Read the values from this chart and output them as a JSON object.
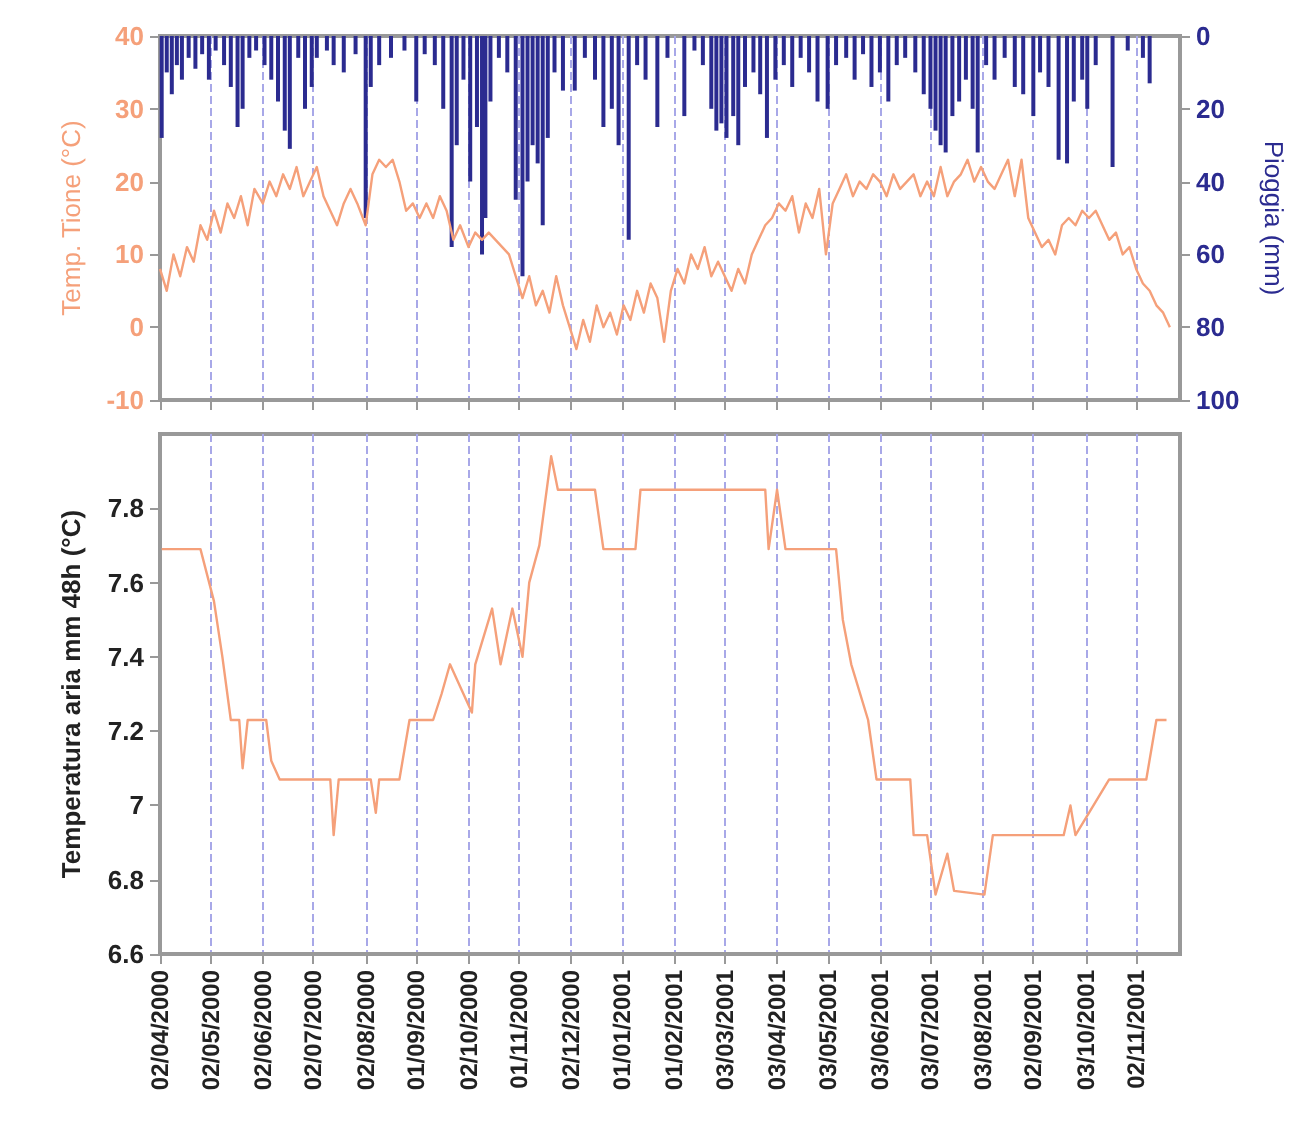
{
  "chart_data": [
    {
      "type": "line",
      "ylabel": "Temp. Tione (°C)",
      "y2label": "Pioggia (mm)",
      "xlim": [
        "2000-04-02",
        "2001-11-28"
      ],
      "xticks": [
        {
          "value": "2000-04-02",
          "label": null
        },
        {
          "value": "2000-05-02",
          "label": null
        },
        {
          "value": "2000-06-02",
          "label": null
        },
        {
          "value": "2000-07-02",
          "label": null
        },
        {
          "value": "2000-08-02",
          "label": null
        },
        {
          "value": "2000-09-01",
          "label": null
        },
        {
          "value": "2000-10-02",
          "label": null
        },
        {
          "value": "2000-11-01",
          "label": null
        },
        {
          "value": "2000-12-02",
          "label": null
        },
        {
          "value": "2001-01-01",
          "label": null
        },
        {
          "value": "2001-02-01",
          "label": null
        },
        {
          "value": "2001-03-03",
          "label": null
        },
        {
          "value": "2001-04-03",
          "label": null
        },
        {
          "value": "2001-05-03",
          "label": null
        },
        {
          "value": "2001-06-03",
          "label": null
        },
        {
          "value": "2001-07-03",
          "label": null
        },
        {
          "value": "2001-08-03",
          "label": null
        },
        {
          "value": "2001-09-02",
          "label": null
        },
        {
          "value": "2001-10-03",
          "label": null
        },
        {
          "value": "2001-11-02",
          "label": null
        }
      ],
      "ylim": [
        -10,
        40
      ],
      "yticks": [
        -10,
        0,
        10,
        20,
        30,
        40
      ],
      "y2lim": [
        100,
        0
      ],
      "y2ticks": [
        0,
        20,
        40,
        60,
        80,
        100
      ],
      "grid": "x",
      "tick_labels": "y",
      "series": [
        {
          "color": "#f5a07a",
          "x": [
            "2000-04-02",
            "2000-04-06",
            "2000-04-10",
            "2000-04-14",
            "2000-04-18",
            "2000-04-22",
            "2000-04-26",
            "2000-04-30",
            "2000-05-04",
            "2000-05-08",
            "2000-05-12",
            "2000-05-16",
            "2000-05-20",
            "2000-05-24",
            "2000-05-28",
            "2000-06-02",
            "2000-06-06",
            "2000-06-10",
            "2000-06-14",
            "2000-06-18",
            "2000-06-22",
            "2000-06-26",
            "2000-06-30",
            "2000-07-04",
            "2000-07-08",
            "2000-07-12",
            "2000-07-16",
            "2000-07-20",
            "2000-07-24",
            "2000-07-28",
            "2000-08-02",
            "2000-08-06",
            "2000-08-10",
            "2000-08-14",
            "2000-08-18",
            "2000-08-22",
            "2000-08-26",
            "2000-08-30",
            "2000-09-03",
            "2000-09-07",
            "2000-09-11",
            "2000-09-15",
            "2000-09-19",
            "2000-09-23",
            "2000-09-27",
            "2000-10-02",
            "2000-10-06",
            "2000-10-10",
            "2000-10-14",
            "2000-10-18",
            "2000-10-22",
            "2000-10-26",
            "2000-10-30",
            "2000-11-03",
            "2000-11-07",
            "2000-11-11",
            "2000-11-15",
            "2000-11-19",
            "2000-11-23",
            "2000-11-27",
            "2000-12-01",
            "2000-12-05",
            "2000-12-09",
            "2000-12-13",
            "2000-12-17",
            "2000-12-21",
            "2000-12-25",
            "2000-12-29",
            "2001-01-02",
            "2001-01-06",
            "2001-01-10",
            "2001-01-14",
            "2001-01-18",
            "2001-01-22",
            "2001-01-26",
            "2001-01-30",
            "2001-02-03",
            "2001-02-07",
            "2001-02-11",
            "2001-02-15",
            "2001-02-19",
            "2001-02-23",
            "2001-02-27",
            "2001-03-03",
            "2001-03-07",
            "2001-03-11",
            "2001-03-15",
            "2001-03-19",
            "2001-03-23",
            "2001-03-27",
            "2001-03-31",
            "2001-04-04",
            "2001-04-08",
            "2001-04-12",
            "2001-04-16",
            "2001-04-20",
            "2001-04-24",
            "2001-04-28",
            "2001-05-02",
            "2001-05-06",
            "2001-05-10",
            "2001-05-14",
            "2001-05-18",
            "2001-05-22",
            "2001-05-26",
            "2001-05-30",
            "2001-06-03",
            "2001-06-07",
            "2001-06-11",
            "2001-06-15",
            "2001-06-19",
            "2001-06-23",
            "2001-06-27",
            "2001-07-01",
            "2001-07-05",
            "2001-07-09",
            "2001-07-13",
            "2001-07-17",
            "2001-07-21",
            "2001-07-25",
            "2001-07-29",
            "2001-08-02",
            "2001-08-06",
            "2001-08-10",
            "2001-08-14",
            "2001-08-18",
            "2001-08-22",
            "2001-08-26",
            "2001-08-30",
            "2001-09-03",
            "2001-09-07",
            "2001-09-11",
            "2001-09-15",
            "2001-09-19",
            "2001-09-23",
            "2001-09-27",
            "2001-10-01",
            "2001-10-05",
            "2001-10-09",
            "2001-10-13",
            "2001-10-17",
            "2001-10-21",
            "2001-10-25",
            "2001-10-29",
            "2001-11-02",
            "2001-11-06",
            "2001-11-10",
            "2001-11-14",
            "2001-11-18",
            "2001-11-22"
          ],
          "values": [
            8,
            5,
            10,
            7,
            11,
            9,
            14,
            12,
            16,
            13,
            17,
            15,
            18,
            14,
            19,
            17,
            20,
            18,
            21,
            19,
            22,
            18,
            20,
            22,
            18,
            16,
            14,
            17,
            19,
            17,
            14,
            21,
            23,
            22,
            23,
            20,
            16,
            17,
            15,
            17,
            15,
            18,
            16,
            12,
            14,
            11,
            13,
            12,
            13,
            12,
            11,
            10,
            7,
            4,
            7,
            3,
            5,
            2,
            7,
            3,
            0,
            -3,
            1,
            -2,
            3,
            0,
            2,
            -1,
            3,
            1,
            5,
            2,
            6,
            4,
            -2,
            5,
            8,
            6,
            10,
            8,
            11,
            7,
            9,
            7,
            5,
            8,
            6,
            10,
            12,
            14,
            15,
            17,
            16,
            18,
            13,
            17,
            15,
            19,
            10,
            17,
            19,
            21,
            18,
            20,
            19,
            21,
            20,
            18,
            21,
            19,
            20,
            21,
            18,
            20,
            18,
            22,
            18,
            20,
            21,
            23,
            20,
            22,
            20,
            19,
            21,
            23,
            18,
            23,
            15,
            13,
            11,
            12,
            10,
            14,
            15,
            14,
            16,
            15,
            16,
            14,
            12,
            13,
            10,
            11,
            8,
            6,
            5,
            3,
            2,
            0
          ]
        },
        {
          "type": "bar",
          "axis": "y2",
          "color": "#2b2b90",
          "x": [
            "2000-04-03",
            "2000-04-06",
            "2000-04-09",
            "2000-04-12",
            "2000-04-15",
            "2000-04-19",
            "2000-04-23",
            "2000-04-27",
            "2000-05-01",
            "2000-05-05",
            "2000-05-10",
            "2000-05-14",
            "2000-05-18",
            "2000-05-21",
            "2000-05-25",
            "2000-05-29",
            "2000-06-03",
            "2000-06-07",
            "2000-06-11",
            "2000-06-15",
            "2000-06-18",
            "2000-06-23",
            "2000-06-27",
            "2000-07-01",
            "2000-07-04",
            "2000-07-10",
            "2000-07-14",
            "2000-07-20",
            "2000-07-27",
            "2000-08-02",
            "2000-08-05",
            "2000-08-10",
            "2000-08-17",
            "2000-08-25",
            "2000-09-01",
            "2000-09-06",
            "2000-09-12",
            "2000-09-17",
            "2000-09-22",
            "2000-09-25",
            "2000-09-29",
            "2000-10-03",
            "2000-10-07",
            "2000-10-10",
            "2000-10-12",
            "2000-10-15",
            "2000-10-20",
            "2000-10-25",
            "2000-10-30",
            "2000-11-03",
            "2000-11-06",
            "2000-11-09",
            "2000-11-12",
            "2000-11-15",
            "2000-11-18",
            "2000-11-22",
            "2000-11-27",
            "2000-12-04",
            "2000-12-10",
            "2000-12-16",
            "2000-12-21",
            "2000-12-26",
            "2000-12-30",
            "2001-01-05",
            "2001-01-10",
            "2001-01-15",
            "2001-01-22",
            "2001-01-28",
            "2001-02-07",
            "2001-02-13",
            "2001-02-18",
            "2001-02-23",
            "2001-02-26",
            "2001-03-01",
            "2001-03-04",
            "2001-03-08",
            "2001-03-11",
            "2001-03-15",
            "2001-03-20",
            "2001-03-24",
            "2001-03-28",
            "2001-04-02",
            "2001-04-07",
            "2001-04-12",
            "2001-04-17",
            "2001-04-22",
            "2001-04-27",
            "2001-05-03",
            "2001-05-08",
            "2001-05-14",
            "2001-05-19",
            "2001-05-24",
            "2001-05-29",
            "2001-06-03",
            "2001-06-08",
            "2001-06-13",
            "2001-06-18",
            "2001-06-24",
            "2001-06-29",
            "2001-07-03",
            "2001-07-06",
            "2001-07-09",
            "2001-07-12",
            "2001-07-16",
            "2001-07-20",
            "2001-07-24",
            "2001-07-28",
            "2001-07-31",
            "2001-08-05",
            "2001-08-10",
            "2001-08-16",
            "2001-08-22",
            "2001-08-27",
            "2001-09-02",
            "2001-09-06",
            "2001-09-11",
            "2001-09-17",
            "2001-09-22",
            "2001-09-26",
            "2001-10-01",
            "2001-10-04",
            "2001-10-09",
            "2001-10-19",
            "2001-10-28",
            "2001-11-06",
            "2001-11-10"
          ],
          "values": [
            28,
            10,
            16,
            8,
            12,
            6,
            9,
            5,
            12,
            4,
            8,
            14,
            25,
            20,
            6,
            4,
            8,
            12,
            18,
            26,
            31,
            6,
            20,
            14,
            6,
            4,
            8,
            10,
            5,
            50,
            14,
            8,
            6,
            4,
            18,
            5,
            8,
            20,
            58,
            30,
            12,
            40,
            25,
            60,
            50,
            18,
            6,
            10,
            45,
            66,
            40,
            30,
            35,
            52,
            28,
            10,
            15,
            15,
            6,
            12,
            25,
            20,
            30,
            56,
            8,
            12,
            25,
            6,
            22,
            4,
            8,
            20,
            26,
            24,
            28,
            22,
            30,
            14,
            10,
            16,
            28,
            12,
            8,
            14,
            6,
            10,
            18,
            20,
            8,
            6,
            12,
            5,
            14,
            10,
            18,
            8,
            6,
            10,
            16,
            20,
            26,
            30,
            32,
            22,
            18,
            12,
            20,
            32,
            8,
            12,
            6,
            14,
            16,
            22,
            10,
            14,
            34,
            35,
            18,
            12,
            20,
            8,
            36,
            4,
            6,
            13
          ]
        }
      ]
    },
    {
      "type": "line",
      "ylabel": "Temperatura aria mm 48h (°C)",
      "xlim": [
        "2000-04-02",
        "2001-11-28"
      ],
      "xticks": [
        {
          "value": "2000-04-02",
          "label": "02/04/2000"
        },
        {
          "value": "2000-05-02",
          "label": "02/05/2000"
        },
        {
          "value": "2000-06-02",
          "label": "02/06/2000"
        },
        {
          "value": "2000-07-02",
          "label": "02/07/2000"
        },
        {
          "value": "2000-08-02",
          "label": "02/08/2000"
        },
        {
          "value": "2000-09-01",
          "label": "01/09/2000"
        },
        {
          "value": "2000-10-02",
          "label": "02/10/2000"
        },
        {
          "value": "2000-11-01",
          "label": "01/11/2000"
        },
        {
          "value": "2000-12-02",
          "label": "02/12/2000"
        },
        {
          "value": "2001-01-01",
          "label": "01/01/2001"
        },
        {
          "value": "2001-02-01",
          "label": "01/02/2001"
        },
        {
          "value": "2001-03-03",
          "label": "03/03/2001"
        },
        {
          "value": "2001-04-03",
          "label": "03/04/2001"
        },
        {
          "value": "2001-05-03",
          "label": "03/05/2001"
        },
        {
          "value": "2001-06-03",
          "label": "03/06/2001"
        },
        {
          "value": "2001-07-03",
          "label": "03/07/2001"
        },
        {
          "value": "2001-08-03",
          "label": "03/08/2001"
        },
        {
          "value": "2001-09-02",
          "label": "02/09/2001"
        },
        {
          "value": "2001-10-03",
          "label": "03/10/2001"
        },
        {
          "value": "2001-11-02",
          "label": "02/11/2001"
        }
      ],
      "ylim": [
        6.6,
        8.0
      ],
      "yticks": [
        6.6,
        6.8,
        {
          "value": 7,
          "label": "7"
        },
        7.2,
        7.4,
        7.6,
        7.8
      ],
      "grid": "x",
      "series": [
        {
          "color": "#f5a07a",
          "x": [
            "2000-04-03",
            "2000-04-26",
            "2000-05-04",
            "2000-05-09",
            "2000-05-14",
            "2000-05-19",
            "2000-05-21",
            "2000-05-24",
            "2000-06-04",
            "2000-06-07",
            "2000-06-12",
            "2000-07-12",
            "2000-07-14",
            "2000-07-17",
            "2000-08-05",
            "2000-08-08",
            "2000-08-10",
            "2000-08-22",
            "2000-08-28",
            "2000-09-11",
            "2000-09-16",
            "2000-09-21",
            "2000-10-04",
            "2000-10-06",
            "2000-10-16",
            "2000-10-21",
            "2000-10-28",
            "2000-11-03",
            "2000-11-07",
            "2000-11-13",
            "2000-11-20",
            "2000-11-24",
            "2000-12-16",
            "2000-12-21",
            "2001-01-09",
            "2001-01-12",
            "2001-03-27",
            "2001-03-29",
            "2001-04-03",
            "2001-04-08",
            "2001-05-08",
            "2001-05-12",
            "2001-05-17",
            "2001-05-27",
            "2001-06-01",
            "2001-06-21",
            "2001-06-23",
            "2001-07-01",
            "2001-07-06",
            "2001-07-13",
            "2001-07-17",
            "2001-08-04",
            "2001-08-09",
            "2001-09-20",
            "2001-09-24",
            "2001-09-27",
            "2001-10-05",
            "2001-10-17",
            "2001-11-08",
            "2001-11-14",
            "2001-11-20"
          ],
          "values": [
            7.69,
            7.69,
            7.55,
            7.4,
            7.23,
            7.23,
            7.1,
            7.23,
            7.23,
            7.12,
            7.07,
            7.07,
            6.92,
            7.07,
            7.07,
            6.98,
            7.07,
            7.07,
            7.23,
            7.23,
            7.3,
            7.38,
            7.25,
            7.38,
            7.53,
            7.38,
            7.53,
            7.4,
            7.6,
            7.7,
            7.94,
            7.85,
            7.85,
            7.69,
            7.69,
            7.85,
            7.85,
            7.69,
            7.85,
            7.69,
            7.69,
            7.5,
            7.38,
            7.23,
            7.07,
            7.07,
            6.92,
            6.92,
            6.76,
            6.87,
            6.77,
            6.76,
            6.92,
            6.92,
            7.0,
            6.92,
            6.98,
            7.07,
            7.07,
            7.23,
            7.23
          ]
        }
      ]
    }
  ]
}
